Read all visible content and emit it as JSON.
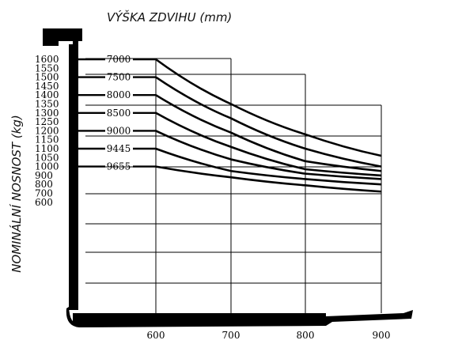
{
  "chart_data": {
    "type": "line",
    "title": "VÝŠKA ZDVIHU (mm)",
    "ylabel": "NOMINÁLNÍ NOSNOST (kg)",
    "xlabel": "",
    "x_ticks": [
      "600",
      "700",
      "800",
      "900"
    ],
    "y_ticks": [
      "1600",
      "1550",
      "1500",
      "1450",
      "1400",
      "1350",
      "1300",
      "1250",
      "1200",
      "1150",
      "1100",
      "1050",
      "1000",
      "900",
      "800",
      "700",
      "600"
    ],
    "x": [
      600,
      700,
      800,
      900
    ],
    "series": [
      {
        "name": "7000",
        "values": [
          1600,
          1350,
          1180,
          1060
        ]
      },
      {
        "name": "7500",
        "values": [
          1500,
          1270,
          1100,
          1000
        ]
      },
      {
        "name": "8000",
        "values": [
          1400,
          1190,
          1030,
          950
        ]
      },
      {
        "name": "8500",
        "values": [
          1300,
          1110,
          970,
          900
        ]
      },
      {
        "name": "9000",
        "values": [
          1200,
          1040,
          920,
          860
        ]
      },
      {
        "name": "9445",
        "values": [
          1100,
          950,
          860,
          800
        ]
      },
      {
        "name": "9655",
        "values": [
          1000,
          880,
          790,
          720
        ]
      }
    ],
    "grid": true,
    "colors": {
      "line": "#000000",
      "grid": "#000000",
      "frame": "#000000"
    }
  }
}
